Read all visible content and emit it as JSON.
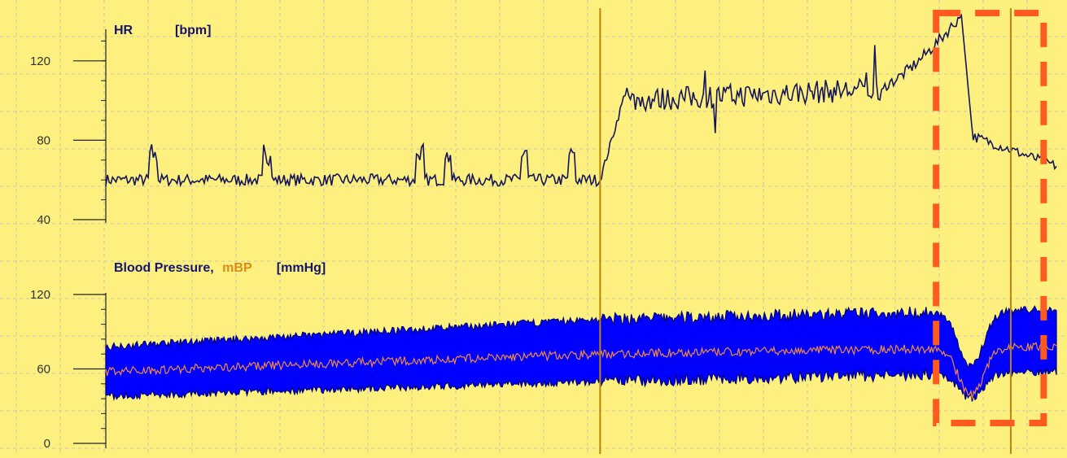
{
  "colors": {
    "background": "#fdf07e",
    "grid": "#c9c9b0",
    "axis": "#222222",
    "hr_line": "#14145a",
    "bp_band": "#0000ff",
    "bp_band_edge": "#00007a",
    "mbp_line": "#f08a3c",
    "marker_line": "#b8860b",
    "highlight_box": "#ff5a1f",
    "title_text": "#14146e",
    "mbp_text": "#d88a1a"
  },
  "chart_data": [
    {
      "type": "line",
      "panel": "hr",
      "title": "HR",
      "unit": "[bpm]",
      "ylim": [
        40,
        140
      ],
      "yticks": [
        "120",
        "80",
        "40"
      ],
      "ytick_values": [
        120,
        80,
        40
      ],
      "xlim": [
        0,
        1
      ],
      "grid": true,
      "segments": [
        {
          "name": "baseline",
          "x": [
            0.0,
            0.52
          ],
          "mean": 60,
          "noise": 3,
          "spikes": [
            0.05,
            0.17,
            0.33,
            0.36,
            0.44,
            0.49
          ]
        },
        {
          "name": "ramp",
          "x": [
            0.52,
            0.55
          ],
          "from": 60,
          "to": 110
        },
        {
          "name": "elevated",
          "x": [
            0.55,
            0.82
          ],
          "mean": 100,
          "noise": 5,
          "trend_end": 106
        },
        {
          "name": "peak",
          "x": [
            0.82,
            0.9
          ],
          "from": 108,
          "to": 143
        },
        {
          "name": "drop",
          "x": [
            0.9,
            1.0
          ],
          "from": 143,
          "to": 67
        }
      ],
      "annotations": {
        "event_marker_x": 0.52,
        "highlight_region_x": [
          0.87,
          0.99
        ]
      }
    },
    {
      "type": "area",
      "panel": "bp",
      "title": "Blood Pressure,",
      "series_label": "mBP",
      "unit": "[mmHg]",
      "ylim": [
        0,
        120
      ],
      "yticks": [
        "120",
        "60",
        "0"
      ],
      "ytick_values": [
        120,
        60,
        0
      ],
      "xlim": [
        0,
        1
      ],
      "grid": true,
      "band": {
        "systolic_start": 78,
        "systolic_mid": 100,
        "systolic_end": 108,
        "diastolic_start": 38,
        "diastolic_mid": 50,
        "diastolic_end": 58
      },
      "mbp": {
        "start": 58,
        "mid": 72,
        "end": 78
      },
      "dip": {
        "x": 0.91,
        "to": 35
      },
      "annotations": {
        "event_marker_x": 0.52,
        "highlight_region_x": [
          0.87,
          0.99
        ]
      }
    }
  ]
}
